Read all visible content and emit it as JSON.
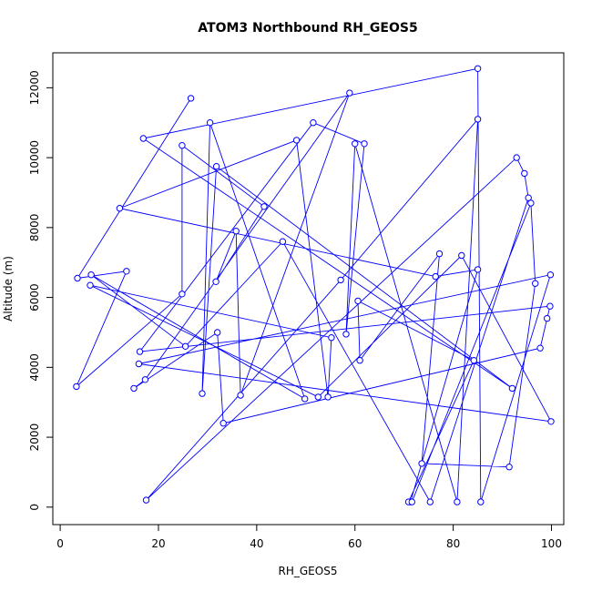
{
  "chart_data": {
    "type": "line",
    "title": "ATOM3 Northbound RH_GEOS5",
    "xlabel": "RH_GEOS5",
    "ylabel": "Altitude (m)",
    "xlim": [
      -1.5,
      102.5
    ],
    "ylim": [
      -500,
      13000
    ],
    "xticks": [
      0,
      20,
      40,
      60,
      80,
      100
    ],
    "yticks": [
      0,
      2000,
      4000,
      6000,
      8000,
      10000,
      12000
    ],
    "grid": false,
    "legend": "none",
    "series": [
      {
        "marker": "open-circle",
        "color": "#0000FF",
        "x": [
          26.6,
          3.5,
          13.5,
          3.3,
          24.8,
          24.8,
          41.5,
          31.7,
          35.8,
          36.7,
          58.9,
          17.3,
          15.0,
          32.0,
          33.2,
          97.7,
          99.1,
          99.7,
          16.2,
          51.5,
          61.9,
          58.2,
          60.0,
          80.8,
          85.0,
          57.1,
          17.5,
          92.9,
          94.5,
          95.3,
          75.3,
          45.3,
          25.5,
          6.3,
          49.8,
          30.5,
          28.9,
          31.8,
          92.0,
          16.9,
          85.0,
          85.6,
          99.8,
          16.0,
          99.9,
          81.7,
          52.5,
          6.1,
          55.2,
          54.5,
          48.1,
          12.1,
          76.4,
          85.0,
          71.3,
          70.9,
          84.2,
          60.6,
          61.0,
          77.2,
          73.6,
          91.4,
          96.7,
          95.8,
          71.6
        ],
        "y": [
          11700,
          6550,
          6750,
          3450,
          6100,
          10350,
          8600,
          6450,
          7900,
          3200,
          11850,
          3650,
          3400,
          5000,
          2400,
          4550,
          5400,
          5750,
          4450,
          11000,
          10400,
          4950,
          10400,
          150,
          11100,
          6500,
          200,
          10000,
          9550,
          8850,
          150,
          7600,
          4600,
          6650,
          3100,
          11000,
          3250,
          9750,
          3400,
          10550,
          12550,
          150,
          6650,
          4100,
          2450,
          7200,
          3150,
          6350,
          4850,
          3150,
          10500,
          8550,
          6600,
          6800,
          150,
          150,
          4200,
          5900,
          4200,
          7250,
          1250,
          1150,
          6400,
          8700,
          150
        ]
      }
    ]
  }
}
